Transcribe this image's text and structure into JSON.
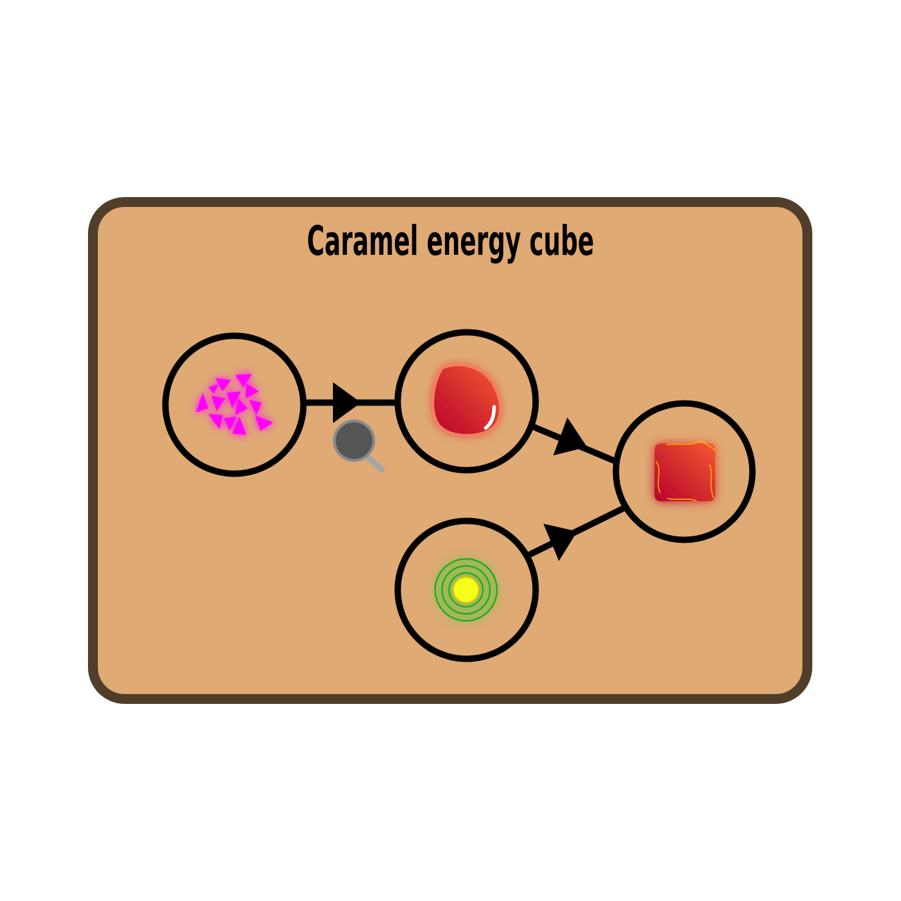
{
  "recipe": {
    "title": "Caramel energy cube"
  },
  "colors": {
    "card_fill": "#dfaa74",
    "card_border": "#513e2a",
    "node_stroke": "#000000",
    "sugar": "#ff00ff",
    "caramel_dark": "#b8002e",
    "caramel_light": "#f25a2e",
    "energy_core": "#f5ff1a",
    "energy_ring": "#1aa81a",
    "pan": "#555555"
  },
  "nodes": [
    {
      "name": "sugar-crystals",
      "icon": "sugar-crystals-icon"
    },
    {
      "name": "melted-caramel",
      "icon": "caramel-drop-icon"
    },
    {
      "name": "energy-orb",
      "icon": "energy-orb-icon"
    },
    {
      "name": "caramel-energy-cube",
      "icon": "caramel-cube-icon"
    }
  ],
  "tools": [
    {
      "name": "frying-pan",
      "icon": "frying-pan-icon"
    }
  ]
}
